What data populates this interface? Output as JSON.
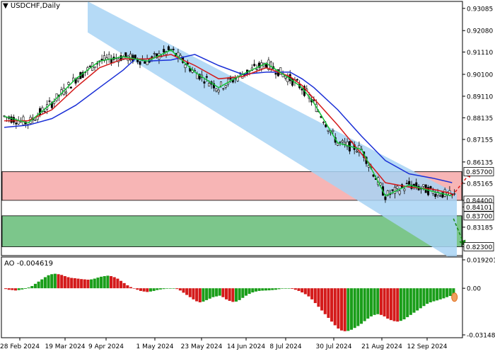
{
  "chart_data": {
    "type": "line",
    "title": "USDCHF,Daily",
    "symbol": "USDCHF",
    "timeframe": "Daily",
    "x_tick_labels": [
      "28 Feb 2024",
      "19 Mar 2024",
      "9 Apr 2024",
      "1 May 2024",
      "23 May 2024",
      "14 Jun 2024",
      "8 Jul 2024",
      "30 Jul 2024",
      "21 Aug 2024",
      "12 Sep 2024"
    ],
    "y_tick_labels": [
      "0.93085",
      "0.92080",
      "0.91110",
      "0.90100",
      "0.89110",
      "0.88135",
      "0.87155",
      "0.86135",
      "0.85165",
      "0.84400",
      "0.84101",
      "0.83185",
      "0.82300"
    ],
    "ylim": [
      0.819,
      0.934
    ],
    "price_levels": [
      {
        "label": "0.85700",
        "value": 0.857,
        "style": "resistance-top"
      },
      {
        "label": "0.84400",
        "value": 0.844,
        "style": "resistance-bottom"
      },
      {
        "label": "0.84101",
        "value": 0.84101,
        "style": "current"
      },
      {
        "label": "0.83700",
        "value": 0.837,
        "style": "support-top"
      },
      {
        "label": "0.82300",
        "value": 0.823,
        "style": "support-bottom"
      }
    ],
    "channel": {
      "upper_start": [
        0,
        0.934
      ],
      "upper_end": [
        190,
        0.847
      ],
      "lower_start": [
        0,
        0.92
      ],
      "lower_end": [
        190,
        0.816
      ]
    },
    "ma_blue": [
      [
        0,
        0.877
      ],
      [
        10,
        0.878
      ],
      [
        20,
        0.881
      ],
      [
        30,
        0.887
      ],
      [
        40,
        0.895
      ],
      [
        50,
        0.903
      ],
      [
        55,
        0.908
      ],
      [
        60,
        0.907
      ],
      [
        70,
        0.9075
      ],
      [
        80,
        0.91
      ],
      [
        90,
        0.905
      ],
      [
        100,
        0.901
      ],
      [
        110,
        0.902
      ],
      [
        120,
        0.902
      ],
      [
        125,
        0.899
      ],
      [
        130,
        0.895
      ],
      [
        140,
        0.885
      ],
      [
        150,
        0.873
      ],
      [
        160,
        0.862
      ],
      [
        170,
        0.856
      ],
      [
        180,
        0.854
      ],
      [
        188,
        0.852
      ]
    ],
    "ma_red": [
      [
        0,
        0.88
      ],
      [
        10,
        0.88
      ],
      [
        20,
        0.885
      ],
      [
        30,
        0.895
      ],
      [
        40,
        0.904
      ],
      [
        50,
        0.908
      ],
      [
        60,
        0.908
      ],
      [
        70,
        0.91
      ],
      [
        80,
        0.905
      ],
      [
        90,
        0.899
      ],
      [
        100,
        0.9
      ],
      [
        110,
        0.904
      ],
      [
        120,
        0.9
      ],
      [
        125,
        0.896
      ],
      [
        130,
        0.89
      ],
      [
        140,
        0.878
      ],
      [
        150,
        0.865
      ],
      [
        160,
        0.852
      ],
      [
        170,
        0.85
      ],
      [
        180,
        0.849
      ],
      [
        188,
        0.847
      ]
    ],
    "ma_green": [
      [
        0,
        0.882
      ],
      [
        10,
        0.879
      ],
      [
        20,
        0.888
      ],
      [
        30,
        0.899
      ],
      [
        40,
        0.907
      ],
      [
        50,
        0.909
      ],
      [
        60,
        0.907
      ],
      [
        70,
        0.912
      ],
      [
        80,
        0.902
      ],
      [
        90,
        0.895
      ],
      [
        100,
        0.901
      ],
      [
        110,
        0.906
      ],
      [
        120,
        0.899
      ],
      [
        125,
        0.895
      ],
      [
        130,
        0.888
      ],
      [
        140,
        0.87
      ],
      [
        150,
        0.867
      ],
      [
        160,
        0.846
      ],
      [
        170,
        0.851
      ],
      [
        180,
        0.848
      ],
      [
        188,
        0.846
      ]
    ],
    "ao": {
      "label": "AO -0.004619",
      "ylim": [
        -0.031484,
        0.019201
      ],
      "y_tick_labels": [
        "0.019201",
        "0.00",
        "-0.031484"
      ],
      "values": [
        -0.0005,
        -0.001,
        -0.0012,
        -0.0015,
        -0.0012,
        -0.0008,
        -0.0004,
        0.0005,
        0.0015,
        0.003,
        0.0045,
        0.006,
        0.0075,
        0.0088,
        0.0095,
        0.0098,
        0.0095,
        0.009,
        0.0082,
        0.0075,
        0.007,
        0.0068,
        0.0065,
        0.0062,
        0.006,
        0.0058,
        0.006,
        0.0065,
        0.0072,
        0.0078,
        0.0082,
        0.0085,
        0.0082,
        0.0075,
        0.0065,
        0.005,
        0.0035,
        0.002,
        0.0008,
        0.0,
        -0.001,
        -0.0018,
        -0.0022,
        -0.0025,
        -0.0022,
        -0.0018,
        -0.0012,
        -0.0008,
        -0.0005,
        -0.0003,
        -0.0002,
        -0.0001,
        -0.0005,
        -0.0015,
        -0.003,
        -0.0045,
        -0.006,
        -0.0075,
        -0.0088,
        -0.0095,
        -0.009,
        -0.008,
        -0.007,
        -0.006,
        -0.0055,
        -0.005,
        -0.006,
        -0.0075,
        -0.0085,
        -0.0092,
        -0.009,
        -0.008,
        -0.0065,
        -0.005,
        -0.0038,
        -0.0028,
        -0.0022,
        -0.0018,
        -0.0016,
        -0.0015,
        -0.0014,
        -0.0012,
        -0.001,
        -0.0006,
        -0.0002,
        0.0,
        0.0,
        -0.0004,
        -0.001,
        -0.0018,
        -0.0028,
        -0.004,
        -0.0055,
        -0.0075,
        -0.01,
        -0.0125,
        -0.015,
        -0.0175,
        -0.02,
        -0.0225,
        -0.025,
        -0.0272,
        -0.0285,
        -0.029,
        -0.0288,
        -0.028,
        -0.0268,
        -0.0255,
        -0.024,
        -0.0222,
        -0.0205,
        -0.019,
        -0.018,
        -0.0175,
        -0.018,
        -0.019,
        -0.0205,
        -0.0215,
        -0.0222,
        -0.0225,
        -0.022,
        -0.021,
        -0.0195,
        -0.018,
        -0.0165,
        -0.015,
        -0.0135,
        -0.012,
        -0.0105,
        -0.0095,
        -0.0088,
        -0.0082,
        -0.0075,
        -0.0068,
        -0.006,
        -0.0052,
        -0.0046
      ]
    }
  },
  "colors": {
    "channel_fill": "#a8d4f5",
    "resistance_fill": "#f7b5b5",
    "support_fill": "#7cc68b",
    "ma_blue": "#1a2fd6",
    "ma_red": "#d41a1a",
    "ma_green": "#18c23a",
    "candle_up": "#000000",
    "candle_down": "#000000",
    "ao_up": "#1a9e1a",
    "ao_down": "#d41a1a"
  }
}
